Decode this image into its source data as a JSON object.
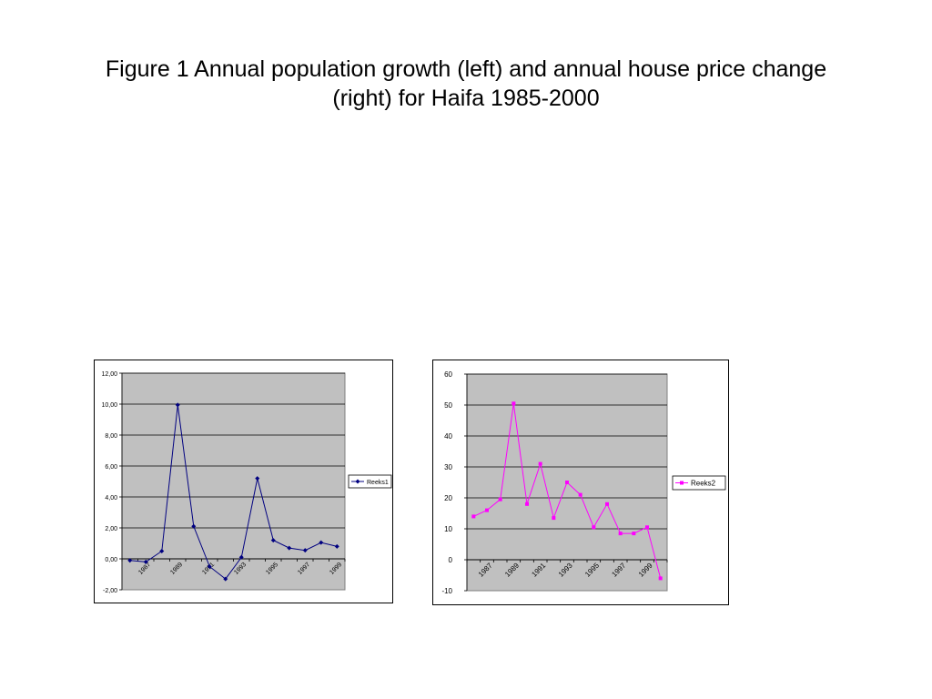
{
  "page": {
    "title_line1": "Figure 1 Annual population growth (left) and annual house price change",
    "title_line2": "(right) for Haifa 1985-2000"
  },
  "chart_data": [
    {
      "type": "line",
      "title": "",
      "xlabel": "",
      "ylabel": "",
      "categories": [
        "1986",
        "1987",
        "1988",
        "1989",
        "1990",
        "1991",
        "1992",
        "1993",
        "1994",
        "1995",
        "1996",
        "1997",
        "1998",
        "1999"
      ],
      "x_tick_labels": [
        "1987",
        "1989",
        "1991",
        "1993",
        "1995",
        "1997",
        "1999"
      ],
      "y_tick_labels": [
        "12,00",
        "10,00",
        "8,00",
        "6,00",
        "4,00",
        "2,00",
        "0,00",
        "-2,00"
      ],
      "ylim": [
        -2,
        12
      ],
      "grid": true,
      "legend_position": "right",
      "plot_background": "#c0c0c0",
      "series": [
        {
          "name": "Reeks1",
          "color": "#000080",
          "marker": "diamond",
          "values": [
            -0.1,
            -0.2,
            0.5,
            9.95,
            2.1,
            -0.5,
            -1.3,
            0.1,
            5.2,
            1.2,
            0.7,
            0.55,
            1.05,
            0.8
          ]
        }
      ]
    },
    {
      "type": "line",
      "title": "",
      "xlabel": "",
      "ylabel": "",
      "categories": [
        "1986",
        "1987",
        "1988",
        "1989",
        "1990",
        "1991",
        "1992",
        "1993",
        "1994",
        "1995",
        "1996",
        "1997",
        "1998",
        "1999",
        "2000"
      ],
      "x_tick_labels": [
        "1987",
        "1989",
        "1991",
        "1993",
        "1995",
        "1997",
        "1999"
      ],
      "y_tick_labels": [
        "60",
        "50",
        "40",
        "30",
        "20",
        "10",
        "0",
        "-10"
      ],
      "ylim": [
        -10,
        60
      ],
      "grid": true,
      "legend_position": "right",
      "plot_background": "#c0c0c0",
      "series": [
        {
          "name": "Reeks2",
          "color": "#ff00ff",
          "marker": "square",
          "values": [
            14,
            16,
            19.5,
            50.5,
            18,
            31,
            13.5,
            25,
            21,
            10.5,
            18,
            8.5,
            8.5,
            10.5,
            -6
          ]
        }
      ]
    }
  ]
}
